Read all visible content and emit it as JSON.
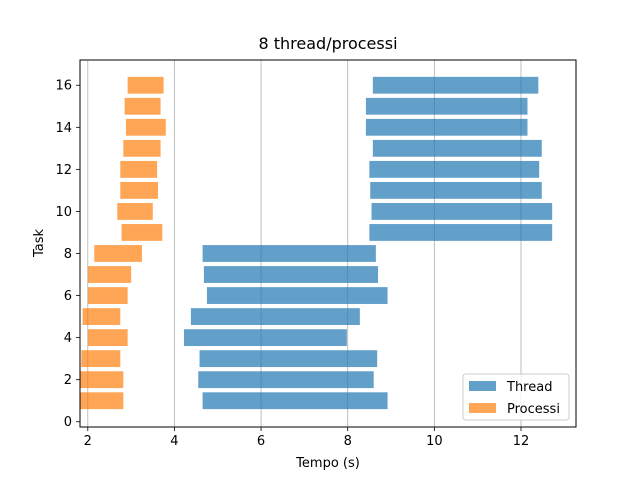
{
  "chart_data": {
    "type": "bar",
    "orientation": "horizontal",
    "title": "8 thread/processi",
    "xlabel": "Tempo (s)",
    "ylabel": "Task",
    "xlim": [
      1.82,
      13.27
    ],
    "ylim": [
      -0.25,
      17.2
    ],
    "xticks": [
      2,
      4,
      6,
      8,
      10,
      12
    ],
    "yticks": [
      0,
      2,
      4,
      6,
      8,
      10,
      12,
      14,
      16
    ],
    "grid": "x",
    "legend_position": "lower right",
    "series": [
      {
        "name": "Thread",
        "color": "#1f77b4",
        "bars": [
          {
            "task": 1,
            "start": 4.65,
            "end": 8.92
          },
          {
            "task": 2,
            "start": 4.55,
            "end": 8.6
          },
          {
            "task": 3,
            "start": 4.58,
            "end": 8.68
          },
          {
            "task": 4,
            "start": 4.22,
            "end": 7.98
          },
          {
            "task": 5,
            "start": 4.38,
            "end": 8.28
          },
          {
            "task": 6,
            "start": 4.75,
            "end": 8.92
          },
          {
            "task": 7,
            "start": 4.68,
            "end": 8.7
          },
          {
            "task": 8,
            "start": 4.65,
            "end": 8.65
          },
          {
            "task": 9,
            "start": 8.5,
            "end": 12.72
          },
          {
            "task": 10,
            "start": 8.55,
            "end": 12.72
          },
          {
            "task": 11,
            "start": 8.52,
            "end": 12.48
          },
          {
            "task": 12,
            "start": 8.5,
            "end": 12.42
          },
          {
            "task": 13,
            "start": 8.58,
            "end": 12.48
          },
          {
            "task": 14,
            "start": 8.42,
            "end": 12.15
          },
          {
            "task": 15,
            "start": 8.42,
            "end": 12.15
          },
          {
            "task": 16,
            "start": 8.58,
            "end": 12.4
          }
        ]
      },
      {
        "name": "Processi",
        "color": "#ff7f0e",
        "bars": [
          {
            "task": 1,
            "start": 1.82,
            "end": 2.82
          },
          {
            "task": 2,
            "start": 1.82,
            "end": 2.82
          },
          {
            "task": 3,
            "start": 1.85,
            "end": 2.75
          },
          {
            "task": 4,
            "start": 2.0,
            "end": 2.92
          },
          {
            "task": 5,
            "start": 1.88,
            "end": 2.75
          },
          {
            "task": 6,
            "start": 2.0,
            "end": 2.92
          },
          {
            "task": 7,
            "start": 2.0,
            "end": 3.0
          },
          {
            "task": 8,
            "start": 2.15,
            "end": 3.25
          },
          {
            "task": 9,
            "start": 2.78,
            "end": 3.72
          },
          {
            "task": 10,
            "start": 2.68,
            "end": 3.5
          },
          {
            "task": 11,
            "start": 2.75,
            "end": 3.62
          },
          {
            "task": 12,
            "start": 2.75,
            "end": 3.6
          },
          {
            "task": 13,
            "start": 2.82,
            "end": 3.68
          },
          {
            "task": 14,
            "start": 2.88,
            "end": 3.8
          },
          {
            "task": 15,
            "start": 2.85,
            "end": 3.68
          },
          {
            "task": 16,
            "start": 2.92,
            "end": 3.75
          }
        ]
      }
    ]
  }
}
